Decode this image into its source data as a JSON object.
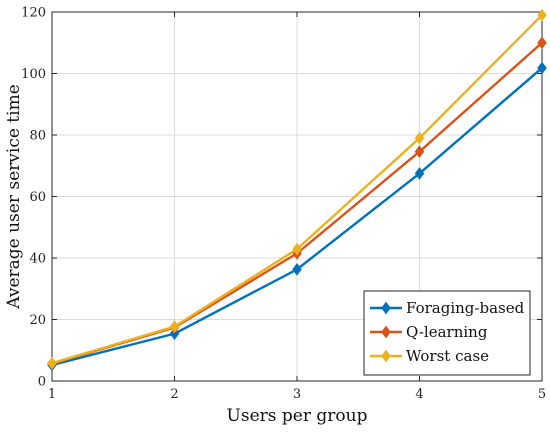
{
  "chart_data": {
    "type": "line",
    "xlabel": "Users per group",
    "ylabel": "Average user service time",
    "x": [
      1,
      2,
      3,
      4,
      5
    ],
    "xlim": [
      1,
      5
    ],
    "ylim": [
      0,
      120
    ],
    "xticks": [
      1,
      2,
      3,
      4,
      5
    ],
    "yticks": [
      0,
      20,
      40,
      60,
      80,
      100,
      120
    ],
    "grid": true,
    "legend_position": "bottom-right",
    "marker": "diamond",
    "series": [
      {
        "name": "Foraging-based",
        "color": "#0072BD",
        "values": [
          5.2,
          15.4,
          36.3,
          67.5,
          101.8
        ]
      },
      {
        "name": "Q-learning",
        "color": "#D95319",
        "values": [
          5.6,
          17.4,
          41.5,
          74.6,
          110.0
        ]
      },
      {
        "name": "Worst case",
        "color": "#EDB120",
        "values": [
          5.8,
          17.7,
          42.9,
          79.0,
          119.0
        ]
      }
    ]
  }
}
